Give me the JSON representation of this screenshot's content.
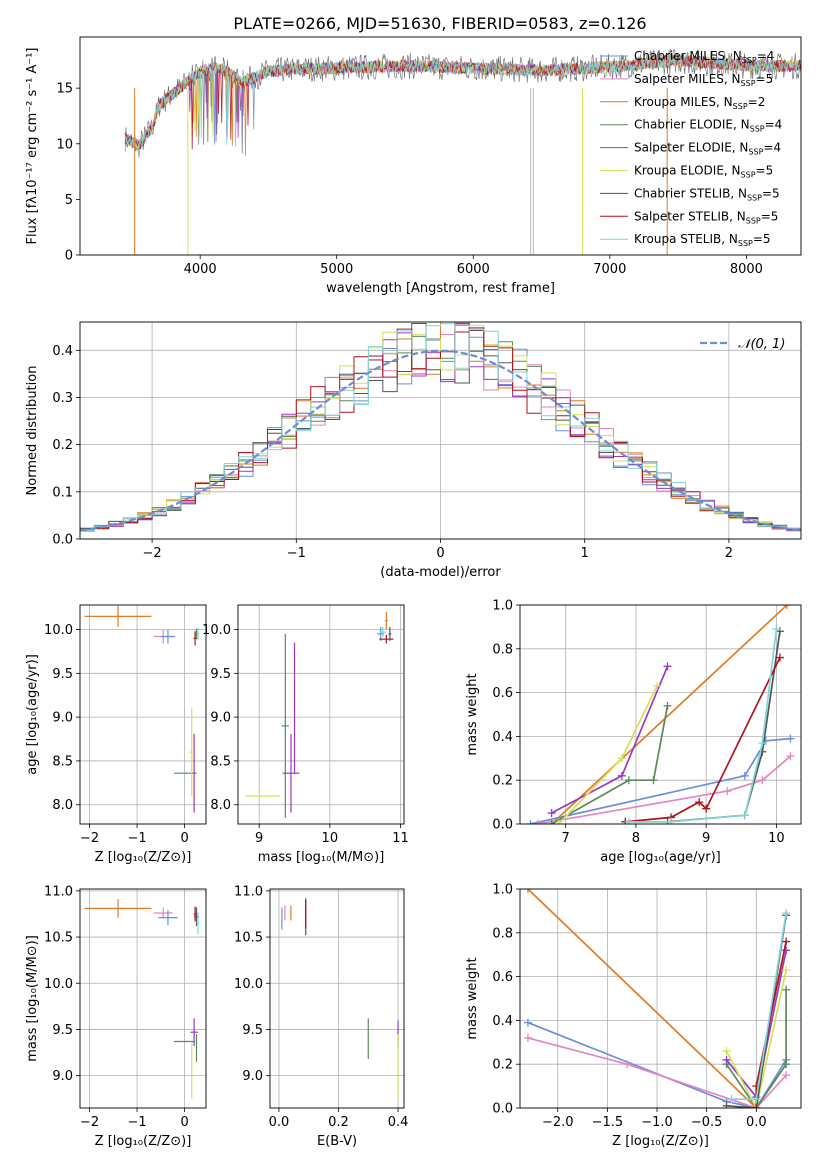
{
  "figure_title": "PLATE=0266, MJD=51630, FIBERID=0583, z=0.126",
  "colors": {
    "Chabrier MILES": "#6a8fd8",
    "Salpeter MILES": "#e286c4",
    "Kroupa MILES": "#e07b27",
    "Chabrier ELODIE": "#5a8a5a",
    "Salpeter ELODIE": "#9b38c4",
    "Kroupa ELODIE": "#d4e05a",
    "Chabrier STELIB": "#555555",
    "Salpeter STELIB": "#b0141f",
    "Kroupa STELIB": "#7fd6d8"
  },
  "chart_data": [
    {
      "type": "line",
      "id": "spectrum",
      "xlabel": "wavelength [Angstrom, rest frame]",
      "ylabel": "Flux [f$_\\lambda$10$^{-17}$ erg cm$^{-2}$ s$^{-1}$ A$^{-1}$]",
      "ylabel_display": "Flux [fλ10⁻¹⁷ erg cm⁻² s⁻¹ A⁻¹]",
      "xlim": [
        3120,
        8400
      ],
      "ylim": [
        0,
        19.6
      ],
      "xticks": [
        4000,
        5000,
        6000,
        7000,
        8000
      ],
      "yticks": [
        0,
        5,
        10,
        15
      ],
      "grid": false,
      "legend_position": "right",
      "legend": [
        {
          "label": "Chabrier MILES, N",
          "sub": "SSP",
          "suffix": "=4",
          "key": "Chabrier MILES"
        },
        {
          "label": "Salpeter MILES, N",
          "sub": "SSP",
          "suffix": "=5",
          "key": "Salpeter MILES"
        },
        {
          "label": "Kroupa MILES, N",
          "sub": "SSP",
          "suffix": "=2",
          "key": "Kroupa MILES"
        },
        {
          "label": "Chabrier ELODIE, N",
          "sub": "SSP",
          "suffix": "=4",
          "key": "Chabrier ELODIE"
        },
        {
          "label": "Salpeter ELODIE, N",
          "sub": "SSP",
          "suffix": "=4",
          "key": "Salpeter ELODIE"
        },
        {
          "label": "Kroupa ELODIE, N",
          "sub": "SSP",
          "suffix": "=5",
          "key": "Kroupa ELODIE"
        },
        {
          "label": "Chabrier STELIB, N",
          "sub": "SSP",
          "suffix": "=5",
          "key": "Chabrier STELIB"
        },
        {
          "label": "Salpeter STELIB, N",
          "sub": "SSP",
          "suffix": "=5",
          "key": "Salpeter STELIB"
        },
        {
          "label": "Kroupa STELIB, N",
          "sub": "SSP",
          "suffix": "=5",
          "key": "Kroupa STELIB"
        }
      ],
      "data_curve": {
        "x": [
          3450,
          3550,
          3650,
          3700,
          3800,
          3900,
          4000,
          4100,
          4200,
          4300,
          4500,
          4700,
          5000,
          5500,
          6000,
          6500,
          7000,
          7500,
          8000,
          8400
        ],
        "y": [
          10.5,
          9.8,
          11.5,
          13.5,
          14.5,
          15.5,
          16.5,
          16.8,
          16.5,
          15.5,
          16.5,
          16.7,
          16.8,
          17.0,
          16.8,
          16.6,
          16.9,
          17.5,
          17.0,
          17.0
        ]
      },
      "dropouts": [
        {
          "key": "Kroupa MILES",
          "x": 3520
        },
        {
          "key": "Kroupa ELODIE",
          "x": 3910
        },
        {
          "key": "Kroupa ELODIE",
          "x": 6800
        },
        {
          "key": "Kroupa MILES",
          "x": 7420
        }
      ]
    },
    {
      "type": "histogram",
      "id": "residuals",
      "xlabel": "(data-model)/error",
      "ylabel": "Normed distribution",
      "xlim": [
        -2.5,
        2.5
      ],
      "ylim": [
        0,
        0.46
      ],
      "xticks": [
        -2,
        -1,
        0,
        1,
        2
      ],
      "yticks": [
        0.0,
        0.1,
        0.2,
        0.3,
        0.4
      ],
      "grid": true,
      "legend_position": "upper right",
      "legend": [
        {
          "label": "𝒩(0, 1)",
          "key": "Chabrier MILES"
        }
      ],
      "bin_width": 0.1,
      "gaussian": {
        "mean": 0,
        "sigma": 1
      }
    },
    {
      "type": "errorbar",
      "id": "age-vs-Z",
      "xlabel": "Z [log₁₀(Z/Z⊙)]",
      "ylabel": "age  [log₁₀(age/yr)]",
      "xlim": [
        -2.2,
        0.45
      ],
      "ylim": [
        7.78,
        10.28
      ],
      "xticks": [
        -2,
        -1,
        0
      ],
      "yticks": [
        8.0,
        8.5,
        9.0,
        9.5,
        10.0
      ],
      "grid": true,
      "points": [
        {
          "key": "Kroupa MILES",
          "x": -1.4,
          "xerr": 0.7,
          "y": 10.15,
          "yerr": 0.12,
          "xs": -2.1,
          "xe": -0.7
        },
        {
          "key": "Salpeter MILES",
          "x": -0.45,
          "xerr": 0.2,
          "y": 9.92,
          "yerr": 0.08
        },
        {
          "key": "Chabrier MILES",
          "x": -0.35,
          "xerr": 0.15,
          "y": 9.92,
          "yerr": 0.08
        },
        {
          "key": "Chabrier ELODIE",
          "x": 0.25,
          "xerr": 0.03,
          "y": 9.95,
          "yerr": 0.06
        },
        {
          "key": "Kroupa STELIB",
          "x": 0.28,
          "xerr": 0.02,
          "y": 9.95,
          "yerr": 0.07
        },
        {
          "key": "Salpeter STELIB",
          "x": 0.22,
          "xerr": 0.03,
          "y": 9.9,
          "yerr": 0.08
        },
        {
          "key": "Salpeter ELODIE",
          "x": 0.2,
          "xerr": 0.05,
          "y": 8.36,
          "yerr": 0.45
        },
        {
          "key": "Chabrier ELODIE",
          "x": 0.0,
          "xerr": 0.22,
          "y": 8.36,
          "yerr": 0.0
        },
        {
          "key": "Kroupa ELODIE",
          "x": 0.15,
          "xerr": 0.05,
          "y": 8.6,
          "yerr": 0.5
        }
      ]
    },
    {
      "type": "errorbar",
      "id": "age-vs-mass",
      "xlabel": "mass [log₁₀(M/M⊙)]",
      "ylabel": "",
      "xlim": [
        8.7,
        11.05
      ],
      "ylim": [
        7.78,
        10.28
      ],
      "xticks": [
        9,
        10,
        11
      ],
      "yticks": [
        8.0,
        8.5,
        9.0,
        9.5,
        10.0
      ],
      "grid": true,
      "points": [
        {
          "key": "Kroupa MILES",
          "x": 10.8,
          "xerr": 0.02,
          "y": 10.1,
          "yerr": 0.1
        },
        {
          "key": "Chabrier MILES",
          "x": 10.72,
          "xerr": 0.05,
          "y": 9.95,
          "yerr": 0.08
        },
        {
          "key": "Kroupa STELIB",
          "x": 10.75,
          "xerr": 0.05,
          "y": 9.97,
          "yerr": 0.06
        },
        {
          "key": "Salpeter STELIB",
          "x": 10.8,
          "xerr": 0.1,
          "y": 9.89,
          "yerr": 0.05
        },
        {
          "key": "Chabrier STELIB",
          "x": 10.85,
          "xerr": 0.02,
          "y": 9.95,
          "yerr": 0.08
        },
        {
          "key": "Chabrier ELODIE",
          "x": 9.37,
          "xerr": 0.05,
          "y": 8.9,
          "yerr": 1.05
        },
        {
          "key": "Salpeter ELODIE",
          "x": 9.45,
          "xerr": 0.12,
          "y": 8.36,
          "yerr": 0.45
        },
        {
          "key": "Kroupa ELODIE",
          "x": 9.05,
          "xerr": 0.25,
          "y": 8.1,
          "yerr": 0.0
        },
        {
          "key": "Salpeter ELODIE",
          "x": 9.5,
          "xerr": 0.0,
          "y": 9.1,
          "yerr": 0.75
        }
      ]
    },
    {
      "type": "line",
      "id": "mass-weight-vs-age",
      "xlabel": "age  [log₁₀(age/yr)]",
      "ylabel": "mass weight",
      "xlim": [
        6.35,
        10.35
      ],
      "ylim": [
        0,
        1.0
      ],
      "xticks": [
        7,
        8,
        9,
        10
      ],
      "yticks": [
        0.0,
        0.2,
        0.4,
        0.6,
        0.8,
        1.0
      ],
      "grid": true,
      "series": [
        {
          "key": "Kroupa MILES",
          "x": [
            6.8,
            10.15
          ],
          "y": [
            0.0,
            1.0
          ]
        },
        {
          "key": "Chabrier MILES",
          "x": [
            6.5,
            9.55,
            9.85,
            10.2
          ],
          "y": [
            0.0,
            0.22,
            0.38,
            0.39
          ]
        },
        {
          "key": "Salpeter MILES",
          "x": [
            6.6,
            9.3,
            9.8,
            10.2
          ],
          "y": [
            0.0,
            0.15,
            0.2,
            0.31
          ]
        },
        {
          "key": "Chabrier ELODIE",
          "x": [
            6.8,
            7.9,
            8.25,
            8.45
          ],
          "y": [
            0.0,
            0.2,
            0.2,
            0.54
          ]
        },
        {
          "key": "Salpeter ELODIE",
          "x": [
            6.8,
            7.8,
            8.45
          ],
          "y": [
            0.05,
            0.22,
            0.72
          ]
        },
        {
          "key": "Kroupa ELODIE",
          "x": [
            6.9,
            7.8,
            8.3
          ],
          "y": [
            0.0,
            0.3,
            0.63
          ]
        },
        {
          "key": "Chabrier STELIB",
          "x": [
            7.85,
            8.45,
            9.55,
            9.8,
            10.05
          ],
          "y": [
            0.01,
            0.01,
            0.04,
            0.33,
            0.88
          ]
        },
        {
          "key": "Salpeter STELIB",
          "x": [
            7.85,
            8.5,
            8.9,
            9.0,
            10.05
          ],
          "y": [
            0.01,
            0.03,
            0.1,
            0.07,
            0.76
          ]
        },
        {
          "key": "Kroupa STELIB",
          "x": [
            7.9,
            8.5,
            9.55,
            9.8,
            10.0
          ],
          "y": [
            0.01,
            0.01,
            0.04,
            0.37,
            0.89
          ]
        }
      ]
    },
    {
      "type": "errorbar",
      "id": "mass-vs-Z",
      "xlabel": "Z [log₁₀(Z/Z⊙)]",
      "ylabel": "mass [log₁₀(M/M⊙)]",
      "xlim": [
        -2.2,
        0.45
      ],
      "ylim": [
        8.65,
        11.02
      ],
      "xticks": [
        -2,
        -1,
        0
      ],
      "yticks": [
        9.0,
        9.5,
        10.0,
        10.5,
        11.0
      ],
      "grid": true,
      "points": [
        {
          "key": "Kroupa MILES",
          "x": -1.4,
          "xerr": 0.7,
          "y": 10.81,
          "yerr": 0.1
        },
        {
          "key": "Salpeter MILES",
          "x": -0.45,
          "xerr": 0.2,
          "y": 10.76,
          "yerr": 0.06
        },
        {
          "key": "Chabrier MILES",
          "x": -0.35,
          "xerr": 0.2,
          "y": 10.71,
          "yerr": 0.08
        },
        {
          "key": "Chabrier STELIB",
          "x": 0.25,
          "xerr": 0.05,
          "y": 10.72,
          "yerr": 0.1
        },
        {
          "key": "Salpeter STELIB",
          "x": 0.22,
          "xerr": 0.03,
          "y": 10.75,
          "yerr": 0.08
        },
        {
          "key": "Kroupa STELIB",
          "x": 0.28,
          "xerr": 0.03,
          "y": 10.65,
          "yerr": 0.12
        },
        {
          "key": "Salpeter ELODIE",
          "x": 0.2,
          "xerr": 0.08,
          "y": 9.47,
          "yerr": 0.15
        },
        {
          "key": "Chabrier ELODIE",
          "x": 0.0,
          "xerr": 0.22,
          "y": 9.37,
          "yerr": 0.0
        },
        {
          "key": "Kroupa ELODIE",
          "x": 0.15,
          "xerr": 0.0,
          "y": 9.05,
          "yerr": 0.3
        },
        {
          "key": "Chabrier ELODIE",
          "x": 0.25,
          "xerr": 0.0,
          "y": 9.3,
          "yerr": 0.15
        }
      ]
    },
    {
      "type": "errorbar",
      "id": "mass-vs-ebv",
      "xlabel": "E(B-V)",
      "ylabel": "",
      "xlim": [
        -0.03,
        0.42
      ],
      "ylim": [
        8.65,
        11.02
      ],
      "xticks": [
        0.0,
        0.2,
        0.4
      ],
      "yticks": [
        9.0,
        9.5,
        10.0,
        10.5,
        11.0
      ],
      "grid": true,
      "points": [
        {
          "key": "Chabrier MILES",
          "x": 0.01,
          "xerr": 0.0,
          "y": 10.7,
          "yerr": 0.12
        },
        {
          "key": "Salpeter MILES",
          "x": 0.02,
          "xerr": 0.0,
          "y": 10.76,
          "yerr": 0.08
        },
        {
          "key": "Kroupa MILES",
          "x": 0.04,
          "xerr": 0.0,
          "y": 10.76,
          "yerr": 0.08
        },
        {
          "key": "Chabrier STELIB",
          "x": 0.09,
          "xerr": 0.0,
          "y": 10.72,
          "yerr": 0.2
        },
        {
          "key": "Salpeter STELIB",
          "x": 0.09,
          "xerr": 0.0,
          "y": 10.75,
          "yerr": 0.15
        },
        {
          "key": "Chabrier ELODIE",
          "x": 0.3,
          "xerr": 0.0,
          "y": 9.4,
          "yerr": 0.22
        },
        {
          "key": "Salpeter ELODIE",
          "x": 0.4,
          "xerr": 0.0,
          "y": 9.45,
          "yerr": 0.15
        },
        {
          "key": "Kroupa ELODIE",
          "x": 0.4,
          "xerr": 0.0,
          "y": 9.1,
          "yerr": 0.35
        }
      ]
    },
    {
      "type": "line",
      "id": "mass-weight-vs-Z",
      "xlabel": "Z [log₁₀(Z/Z⊙)]",
      "ylabel": "mass weight",
      "xlim": [
        -2.38,
        0.45
      ],
      "ylim": [
        0,
        1.0
      ],
      "xticks": [
        -2.0,
        -1.5,
        -1.0,
        -0.5,
        0.0
      ],
      "yticks": [
        0.0,
        0.2,
        0.4,
        0.6,
        0.8,
        1.0
      ],
      "grid": true,
      "series": [
        {
          "key": "Kroupa MILES",
          "x": [
            -2.3,
            0.0
          ],
          "y": [
            1.0,
            0.0
          ]
        },
        {
          "key": "Chabrier MILES",
          "x": [
            -2.3,
            -0.3,
            0.0,
            0.3
          ],
          "y": [
            0.39,
            0.03,
            0.0,
            0.22
          ]
        },
        {
          "key": "Salpeter MILES",
          "x": [
            -2.3,
            -1.3,
            0.0,
            0.3
          ],
          "y": [
            0.32,
            0.2,
            0.0,
            0.15
          ]
        },
        {
          "key": "Chabrier ELODIE",
          "x": [
            -0.3,
            0.0,
            0.3,
            0.3
          ],
          "y": [
            0.2,
            0.0,
            0.2,
            0.54
          ]
        },
        {
          "key": "Salpeter ELODIE",
          "x": [
            -0.3,
            0.0,
            0.3
          ],
          "y": [
            0.22,
            0.05,
            0.72
          ]
        },
        {
          "key": "Kroupa ELODIE",
          "x": [
            -0.3,
            0.0,
            0.3
          ],
          "y": [
            0.26,
            0.0,
            0.63
          ]
        },
        {
          "key": "Chabrier STELIB",
          "x": [
            -0.3,
            0.0,
            0.3
          ],
          "y": [
            0.01,
            0.0,
            0.88
          ]
        },
        {
          "key": "Salpeter STELIB",
          "x": [
            0.0,
            0.0,
            0.3
          ],
          "y": [
            0.0,
            0.1,
            0.76
          ]
        },
        {
          "key": "Kroupa STELIB",
          "x": [
            -0.25,
            0.0,
            0.3
          ],
          "y": [
            0.04,
            0.04,
            0.89
          ]
        }
      ]
    }
  ]
}
